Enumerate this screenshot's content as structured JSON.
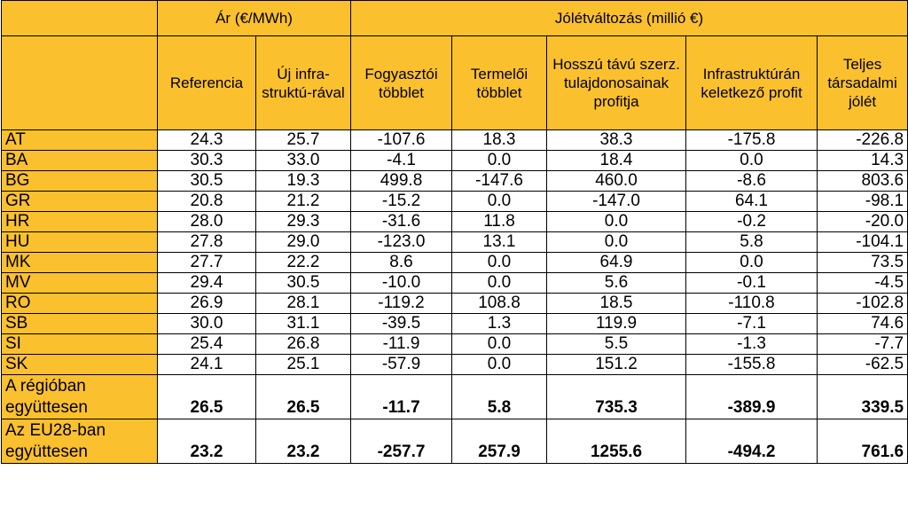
{
  "header": {
    "price_group": "Ár (€/MWh)",
    "welfare_group": "Jólétváltozás (millió €)",
    "columns": [
      "Referencia",
      "Új infra-struktú-rával",
      "Fogyasztói többlet",
      "Termelői többlet",
      "Hosszú távú szerz. tulajdonosainak profitja",
      "Infrastruktúrán keletkező profit",
      "Teljes társadalmi jólét"
    ]
  },
  "rows": [
    {
      "label": "AT",
      "values": [
        "24.3",
        "25.7",
        "-107.6",
        "18.3",
        "38.3",
        "-175.8",
        "-226.8"
      ]
    },
    {
      "label": "BA",
      "values": [
        "30.3",
        "33.0",
        "-4.1",
        "0.0",
        "18.4",
        "0.0",
        "14.3"
      ]
    },
    {
      "label": "BG",
      "values": [
        "30.5",
        "19.3",
        "499.8",
        "-147.6",
        "460.0",
        "-8.6",
        "803.6"
      ]
    },
    {
      "label": "GR",
      "values": [
        "20.8",
        "21.2",
        "-15.2",
        "0.0",
        "-147.0",
        "64.1",
        "-98.1"
      ]
    },
    {
      "label": "HR",
      "values": [
        "28.0",
        "29.3",
        "-31.6",
        "11.8",
        "0.0",
        "-0.2",
        "-20.0"
      ]
    },
    {
      "label": "HU",
      "values": [
        "27.8",
        "29.0",
        "-123.0",
        "13.1",
        "0.0",
        "5.8",
        "-104.1"
      ]
    },
    {
      "label": "MK",
      "values": [
        "27.7",
        "22.2",
        "8.6",
        "0.0",
        "64.9",
        "0.0",
        "73.5"
      ]
    },
    {
      "label": "MV",
      "values": [
        "29.4",
        "30.5",
        "-10.0",
        "0.0",
        "5.6",
        "-0.1",
        "-4.5"
      ]
    },
    {
      "label": "RO",
      "values": [
        "26.9",
        "28.1",
        "-119.2",
        "108.8",
        "18.5",
        "-110.8",
        "-102.8"
      ]
    },
    {
      "label": "SB",
      "values": [
        "30.0",
        "31.1",
        "-39.5",
        "1.3",
        "119.9",
        "-7.1",
        "74.6"
      ]
    },
    {
      "label": "SI",
      "values": [
        "25.4",
        "26.8",
        "-11.9",
        "0.0",
        "5.5",
        "-1.3",
        "-7.7"
      ]
    },
    {
      "label": "SK",
      "values": [
        "24.1",
        "25.1",
        "-57.9",
        "0.0",
        "151.2",
        "-155.8",
        "-62.5"
      ]
    }
  ],
  "totals": [
    {
      "label": "A régióban együttesen",
      "values": [
        "26.5",
        "26.5",
        "-11.7",
        "5.8",
        "735.3",
        "-389.9",
        "339.5"
      ]
    },
    {
      "label": "Az EU28-ban együttesen",
      "values": [
        "23.2",
        "23.2",
        "-257.7",
        "257.9",
        "1255.6",
        "-494.2",
        "761.6"
      ]
    }
  ]
}
